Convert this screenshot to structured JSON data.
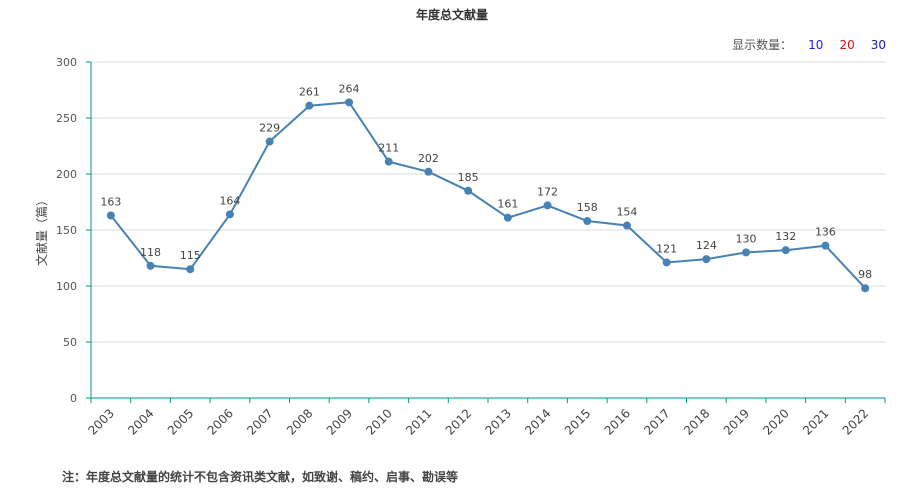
{
  "title": "年度总文献量",
  "display_count": {
    "label": "显示数量：",
    "options": [
      {
        "value": "10",
        "color": "#1a1aff"
      },
      {
        "value": "20",
        "color": "#e01010"
      },
      {
        "value": "30",
        "color": "#1a1aa0"
      }
    ]
  },
  "footnote": "注：年度总文献量的统计不包含资讯类文献，如致谢、稿约、启事、勘误等",
  "chart_data": {
    "type": "line",
    "title": "年度总文献量",
    "xlabel": "",
    "ylabel": "文献量（篇）",
    "ylim": [
      0,
      300
    ],
    "yticks": [
      0,
      50,
      100,
      150,
      200,
      250,
      300
    ],
    "grid": true,
    "categories": [
      "2003",
      "2004",
      "2005",
      "2006",
      "2007",
      "2008",
      "2009",
      "2010",
      "2011",
      "2012",
      "2013",
      "2014",
      "2015",
      "2016",
      "2017",
      "2018",
      "2019",
      "2020",
      "2021",
      "2022"
    ],
    "values": [
      163,
      118,
      115,
      164,
      229,
      261,
      264,
      211,
      202,
      185,
      161,
      172,
      158,
      154,
      121,
      124,
      130,
      132,
      136,
      98
    ],
    "colors": {
      "line": "#4682b4",
      "axis": "#009688",
      "grid": "#dddddd"
    }
  }
}
